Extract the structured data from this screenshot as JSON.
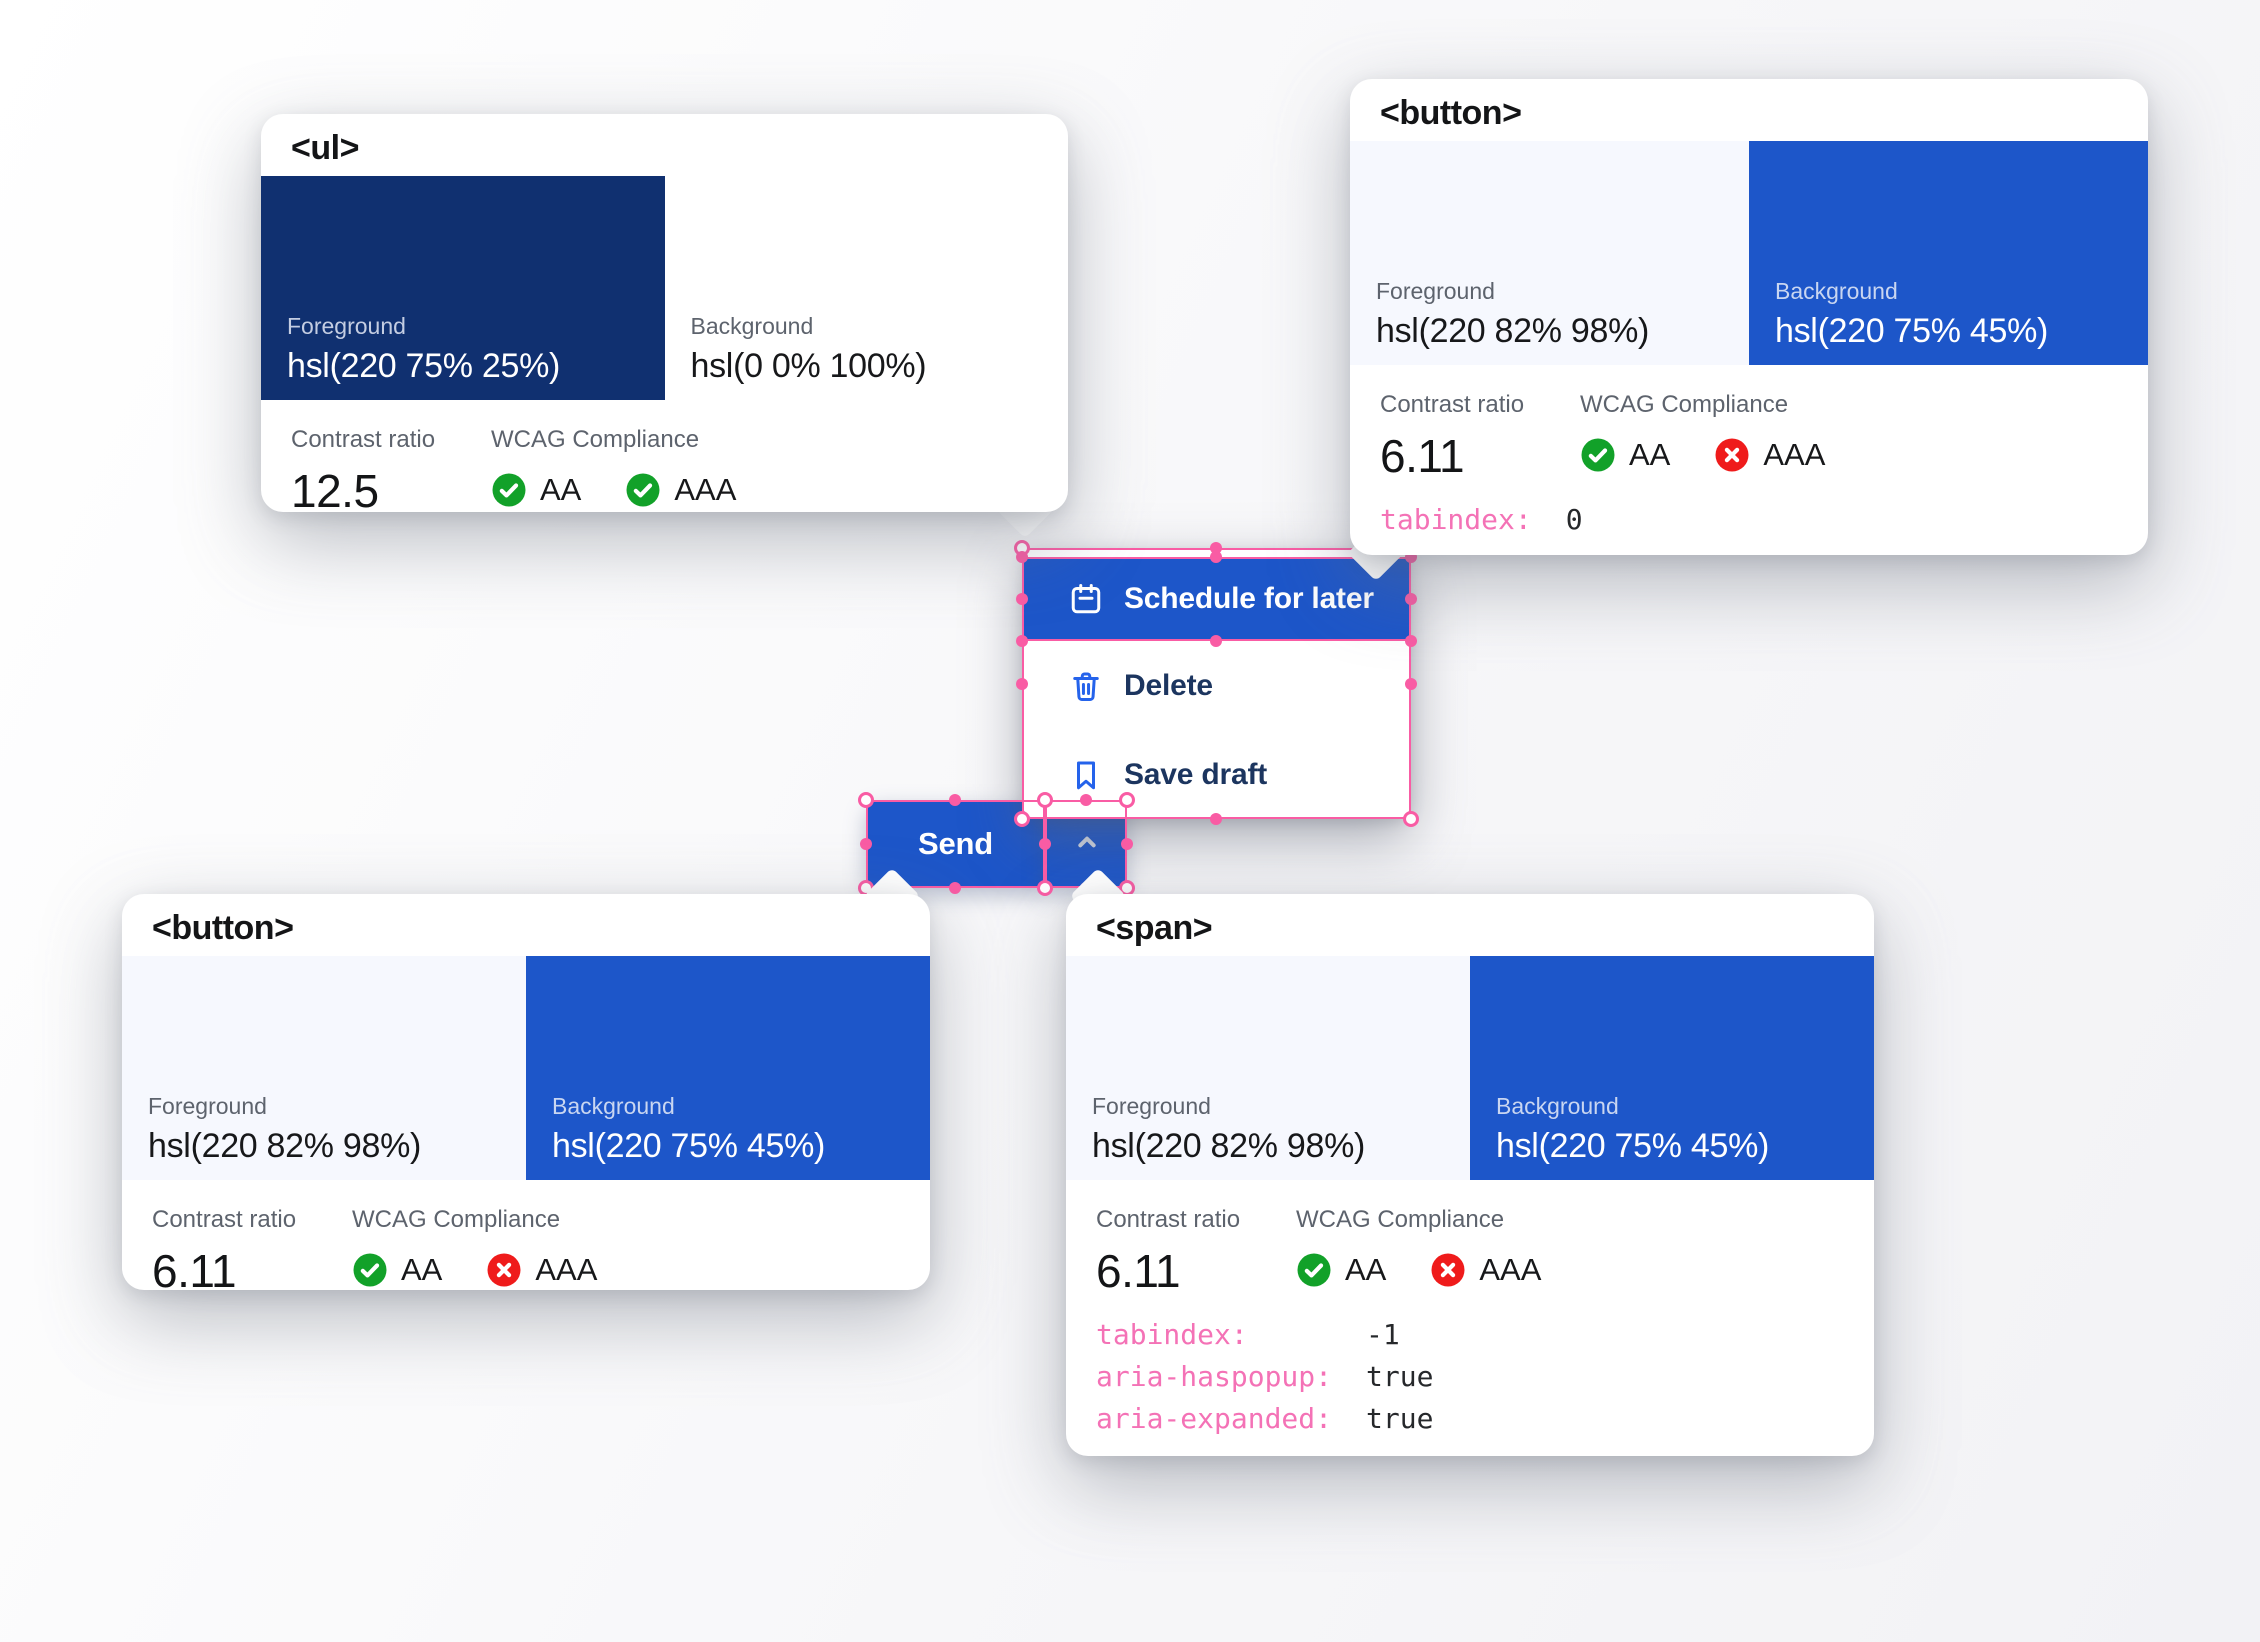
{
  "colors": {
    "accent_blue": "#1d56c9",
    "selection_pink": "#f95ca4",
    "attr_name_pink": "#f472b6",
    "pass_green": "#12a129",
    "fail_red": "#ef1b1b",
    "navy_swatch": "#103070",
    "light_swatch": "#f6f8fe"
  },
  "split_button": {
    "label": "Send",
    "chevron_icon": "chevron-up-icon"
  },
  "menu": {
    "items": [
      {
        "label": "Schedule for later",
        "icon": "calendar-icon",
        "selected": true
      },
      {
        "label": "Delete",
        "icon": "trash-icon",
        "selected": false
      },
      {
        "label": "Save draft",
        "icon": "bookmark-icon",
        "selected": false
      }
    ]
  },
  "cards": [
    {
      "tag": "<ul>",
      "fg_label": "Foreground",
      "fg_value": "hsl(220 75% 25%)",
      "bg_label": "Background",
      "bg_value": "hsl(0 0% 100%)",
      "contrast_label": "Contrast ratio",
      "contrast_value": "12.5",
      "wcag_label": "WCAG Compliance",
      "aa_label": "AA",
      "aa_pass": true,
      "aaa_label": "AAA",
      "aaa_pass": true,
      "attributes": []
    },
    {
      "tag": "<button>",
      "fg_label": "Foreground",
      "fg_value": "hsl(220 82% 98%)",
      "bg_label": "Background",
      "bg_value": "hsl(220 75% 45%)",
      "contrast_label": "Contrast ratio",
      "contrast_value": "6.11",
      "wcag_label": "WCAG Compliance",
      "aa_label": "AA",
      "aa_pass": true,
      "aaa_label": "AAA",
      "aaa_pass": false,
      "attributes": [
        {
          "name": "tabindex:",
          "value": "0"
        }
      ]
    },
    {
      "tag": "<button>",
      "fg_label": "Foreground",
      "fg_value": "hsl(220 82% 98%)",
      "bg_label": "Background",
      "bg_value": "hsl(220 75% 45%)",
      "contrast_label": "Contrast ratio",
      "contrast_value": "6.11",
      "wcag_label": "WCAG Compliance",
      "aa_label": "AA",
      "aa_pass": true,
      "aaa_label": "AAA",
      "aaa_pass": false,
      "attributes": []
    },
    {
      "tag": "<span>",
      "fg_label": "Foreground",
      "fg_value": "hsl(220 82% 98%)",
      "bg_label": "Background",
      "bg_value": "hsl(220 75% 45%)",
      "contrast_label": "Contrast ratio",
      "contrast_value": "6.11",
      "wcag_label": "WCAG Compliance",
      "aa_label": "AA",
      "aa_pass": true,
      "aaa_label": "AAA",
      "aaa_pass": false,
      "attributes": [
        {
          "name": "tabindex:",
          "value": "-1"
        },
        {
          "name": "aria-haspopup:",
          "value": "true"
        },
        {
          "name": "aria-expanded:",
          "value": "true"
        }
      ]
    }
  ]
}
